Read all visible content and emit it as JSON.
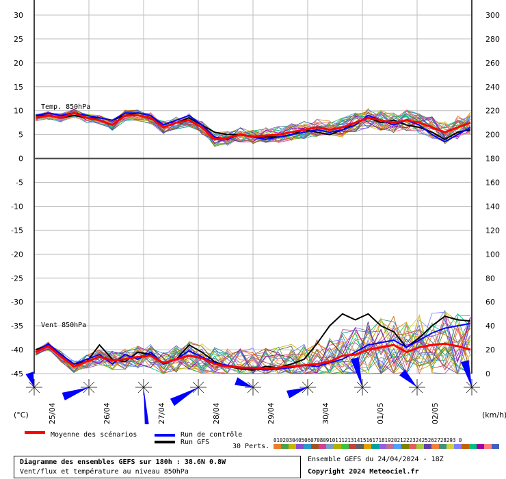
{
  "chart_data": {
    "type": "line",
    "left_axis": {
      "unit": "(°C)",
      "ticks": [
        "30",
        "25",
        "20",
        "15",
        "10",
        "5",
        "0",
        "-5",
        "-10",
        "-15",
        "-20",
        "-25",
        "-30",
        "-35",
        "-40",
        "-45"
      ],
      "ylim": [
        -45,
        30
      ]
    },
    "right_axis": {
      "unit": "(km/h)",
      "ticks": [
        "300",
        "280",
        "260",
        "240",
        "220",
        "200",
        "180",
        "160",
        "140",
        "120",
        "100",
        "80",
        "60",
        "40",
        "20",
        "0"
      ],
      "ylim": [
        0,
        300
      ]
    },
    "x_labels": [
      "25/04",
      "26/04",
      "27/04",
      "28/04",
      "29/04",
      "30/04",
      "01/05",
      "02/05"
    ],
    "panels": [
      {
        "label": "Temp. 850hPa",
        "mean": [
          8.5,
          9,
          8.5,
          9.5,
          8.5,
          8,
          7,
          9,
          9,
          8.5,
          6.5,
          7.5,
          8,
          6.5,
          4,
          4.3,
          5,
          4.6,
          4.8,
          5,
          5.5,
          6,
          6.5,
          6,
          6.5,
          7.5,
          8.5,
          8,
          7.5,
          8,
          7.5,
          6.5,
          5.5,
          6.5,
          7.5
        ],
        "control": [
          9,
          9.5,
          9,
          9.5,
          9,
          8.5,
          8,
          9.5,
          9.5,
          9,
          7,
          8,
          9,
          7,
          4.5,
          4,
          5,
          4.5,
          4,
          4.5,
          5,
          5.5,
          6,
          5.5,
          6,
          7,
          9,
          8,
          7,
          8,
          7,
          5,
          3.5,
          5,
          6.5
        ],
        "gfs": [
          9,
          9,
          8.5,
          9,
          8.5,
          8.5,
          8,
          9,
          9.5,
          9,
          6.5,
          7.5,
          8.5,
          7,
          5.5,
          5,
          5,
          4.5,
          4.5,
          4.5,
          5,
          6,
          5.5,
          5,
          6,
          7.5,
          8.5,
          7.5,
          8,
          7,
          6.5,
          5.5,
          4,
          5.5,
          6
        ]
      },
      {
        "label": "Vent 850hPa",
        "mean": [
          18,
          23,
          14,
          6,
          10,
          14,
          11,
          12,
          14,
          15,
          9,
          12,
          15,
          13,
          8,
          6,
          5,
          5,
          4,
          5,
          6,
          7,
          8,
          10,
          15,
          16,
          20,
          22,
          24,
          18,
          22,
          24,
          25,
          23,
          20
        ],
        "control": [
          18,
          25,
          16,
          8,
          12,
          16,
          8,
          16,
          12,
          18,
          8,
          12,
          19,
          14,
          9,
          7,
          5,
          4,
          3,
          4,
          5,
          7,
          6,
          9,
          12,
          18,
          24,
          26,
          28,
          22,
          28,
          34,
          38,
          40,
          42
        ],
        "gfs": [
          20,
          24,
          16,
          8,
          10,
          24,
          12,
          10,
          18,
          16,
          8,
          12,
          24,
          18,
          10,
          6,
          4,
          3,
          6,
          5,
          8,
          12,
          25,
          40,
          50,
          45,
          50,
          40,
          35,
          22,
          30,
          40,
          48,
          45,
          44
        ]
      }
    ],
    "legend": {
      "mean": "Moyenne des scénarios",
      "control": "Run de contrôle",
      "gfs": "Run GFS",
      "perts_label": "30 Perts.",
      "pert_numbers": "01020304050607080910111213141516171819202122232425262728293 0"
    },
    "colors": {
      "mean": "#ff0000",
      "control": "#0000ff",
      "gfs": "#000000"
    },
    "title": "Diagramme des ensembles GEFS sur 180h : 38.6N 0.8W",
    "subtitle": "Vent/flux et température au niveau 850hPa",
    "run_info": "Ensemble GEFS du 24/04/2024 - 18Z",
    "copyright": "Copyright 2024 Meteociel.fr"
  }
}
